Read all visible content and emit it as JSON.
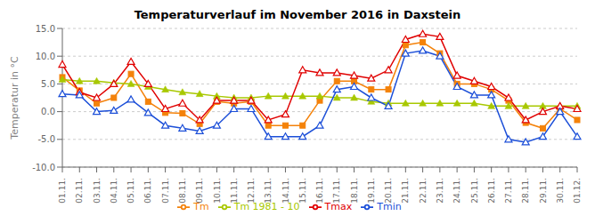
{
  "chart_data": {
    "type": "line",
    "title": "Temperaturverlauf im November 2016 in Daxstein",
    "ylabel": "Temperatur in °C",
    "categories": [
      "01.11.",
      "02.11.",
      "03.11.",
      "04.11.",
      "05.11.",
      "06.11.",
      "07.11.",
      "08.11.",
      "09.11.",
      "10.11.",
      "11.11.",
      "12.11.",
      "13.11.",
      "14.11.",
      "15.11.",
      "16.11.",
      "17.11.",
      "18.11.",
      "19.11.",
      "20.11.",
      "21.11.",
      "22.11.",
      "23.11.",
      "24.11.",
      "25.11.",
      "26.11.",
      "27.11.",
      "28.11.",
      "29.11.",
      "30.11.",
      "01.12."
    ],
    "series": [
      {
        "name": "Tm",
        "color": "#f4820a",
        "marker": "square",
        "values": [
          6.2,
          3.8,
          1.5,
          2.5,
          6.8,
          1.8,
          -0.2,
          -0.3,
          -2.2,
          1.8,
          1.5,
          1.8,
          -2.5,
          -2.5,
          -2.5,
          2.0,
          5.5,
          5.5,
          4.0,
          4.0,
          12.0,
          12.5,
          10.5,
          5.0,
          5.0,
          4.0,
          2.0,
          -2.0,
          -3.0,
          0.5,
          -1.5
        ]
      },
      {
        "name": "Tm 1981 - 10",
        "color": "#a8c800",
        "marker": "triangle",
        "values": [
          5.8,
          5.5,
          5.5,
          5.2,
          5.0,
          4.5,
          4.0,
          3.5,
          3.2,
          2.8,
          2.5,
          2.5,
          2.8,
          2.8,
          2.8,
          2.8,
          2.5,
          2.5,
          1.8,
          1.5,
          1.5,
          1.5,
          1.5,
          1.5,
          1.5,
          1.0,
          1.0,
          1.0,
          1.0,
          1.0,
          1.0
        ]
      },
      {
        "name": "Tmax",
        "color": "#e00000",
        "marker": "triangle-open",
        "values": [
          8.5,
          3.5,
          2.5,
          5.0,
          9.0,
          5.0,
          0.5,
          1.5,
          -1.5,
          2.0,
          2.0,
          2.0,
          -1.5,
          -0.5,
          7.5,
          7.0,
          7.0,
          6.5,
          6.0,
          7.5,
          13.0,
          14.0,
          13.5,
          6.5,
          5.5,
          4.5,
          2.5,
          -1.5,
          0.0,
          1.0,
          0.5
        ]
      },
      {
        "name": "Tmin",
        "color": "#1c4fd8",
        "marker": "triangle-open",
        "values": [
          3.2,
          3.0,
          0.0,
          0.2,
          2.2,
          -0.2,
          -2.5,
          -3.0,
          -3.5,
          -2.5,
          0.5,
          0.5,
          -4.5,
          -4.5,
          -4.5,
          -2.5,
          4.0,
          4.5,
          2.5,
          1.0,
          10.5,
          11.0,
          10.0,
          4.5,
          3.0,
          3.0,
          -5.0,
          -5.5,
          -4.5,
          0.0,
          -4.5
        ]
      }
    ],
    "ylim": [
      -10.0,
      15.0
    ],
    "yticks": [
      {
        "value": -10.0,
        "label": "-10.0"
      },
      {
        "value": -5.0,
        "label": "-5.0"
      },
      {
        "value": 0.0,
        "label": "0.0"
      },
      {
        "value": 5.0,
        "label": "5.0"
      },
      {
        "value": 10.0,
        "label": "10.0"
      },
      {
        "value": 15.0,
        "label": "15.0"
      }
    ],
    "grid": true,
    "legend": "bottom"
  }
}
